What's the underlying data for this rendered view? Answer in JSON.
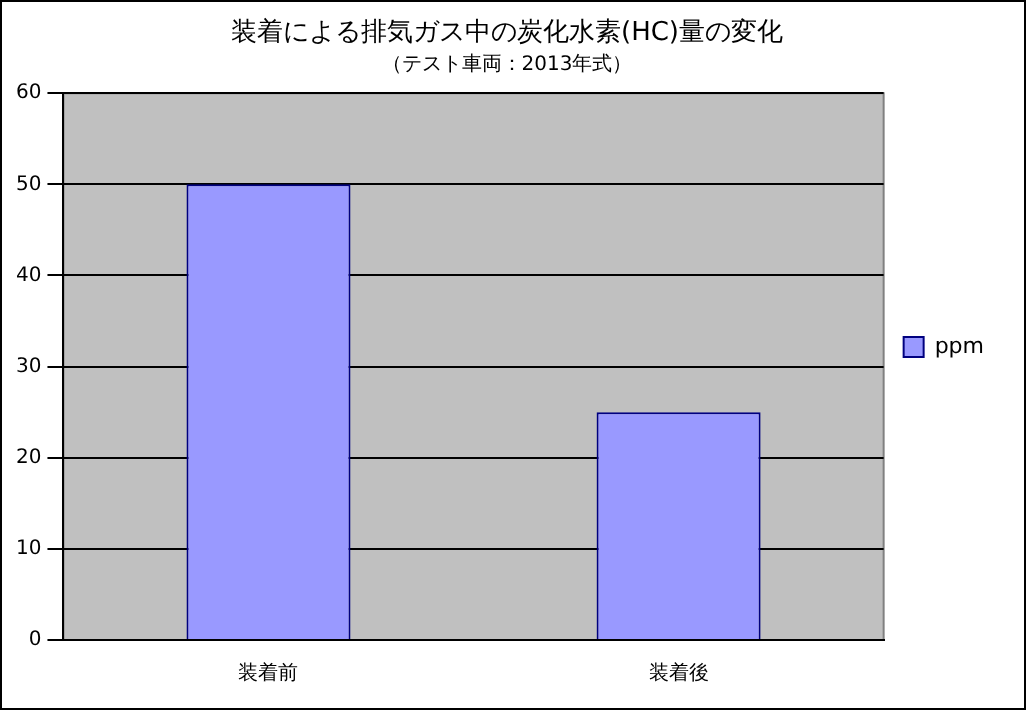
{
  "chart_data": {
    "type": "bar",
    "title": "装着による排気ガス中の炭化水素(HC)量の変化",
    "subtitle": "（テスト車両：2013年式）",
    "categories": [
      "装着前",
      "装着後"
    ],
    "series": [
      {
        "name": "ppm",
        "color": "#9999ff",
        "values": [
          50,
          25
        ]
      }
    ],
    "ylim": [
      0,
      60
    ],
    "yticks": [
      0,
      10,
      20,
      30,
      40,
      50,
      60
    ],
    "grid": "y",
    "legend": "right"
  }
}
